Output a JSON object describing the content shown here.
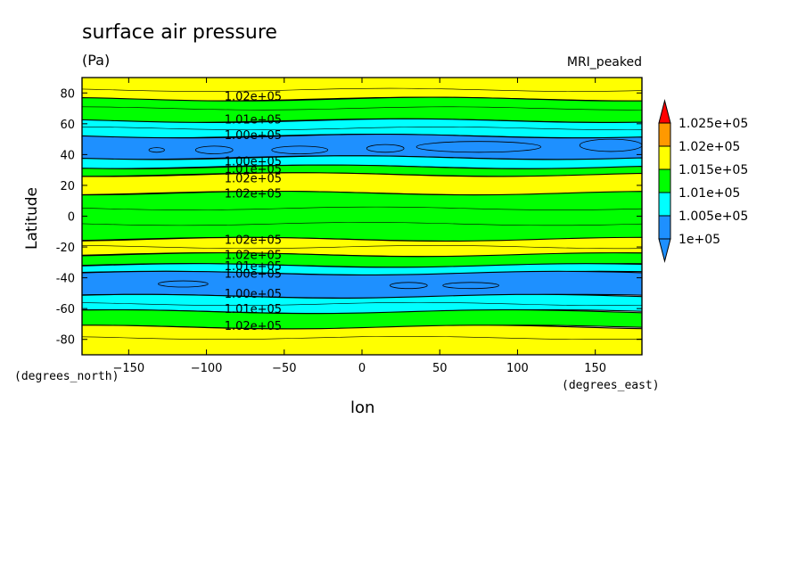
{
  "title": "surface air pressure",
  "units": "(Pa)",
  "model": "MRI_peaked",
  "ylabel": "Latitude",
  "ylabel_units": "(degrees_north)",
  "xlabel": "lon",
  "xlabel_units": "(degrees_east)",
  "colors": {
    "blue": "#1e90ff",
    "cyan": "#00ffff",
    "green": "#00ff00",
    "yellow": "#ffff00",
    "orange": "#ff9900",
    "red": "#ff0000"
  },
  "chart_data": {
    "type": "heatmap",
    "title": "surface air pressure",
    "xlabel": "lon",
    "ylabel": "Latitude",
    "xlim": [
      -180,
      180
    ],
    "ylim": [
      -90,
      90
    ],
    "xticks": [
      -150,
      -100,
      -50,
      0,
      50,
      100,
      150
    ],
    "yticks": [
      80,
      60,
      40,
      20,
      0,
      -20,
      -40,
      -60,
      -80
    ],
    "colorbar": {
      "levels": [
        "1.025e+05",
        "1.02e+05",
        "1.015e+05",
        "1.01e+05",
        "1.005e+05",
        "1e+05"
      ],
      "colors": [
        "#ff9900",
        "#ffff00",
        "#00ff00",
        "#00ffff",
        "#1e90ff"
      ],
      "over_color": "#ff0000",
      "under_color": "#1e90ff"
    },
    "bands": [
      {
        "lat_from": 90,
        "lat_to": 76,
        "level": "1.015e+05 to 1.02e+05",
        "color": "#ffff00"
      },
      {
        "lat_from": 76,
        "lat_to": 62,
        "level": "1.01e+05 to 1.015e+05",
        "color": "#00ff00"
      },
      {
        "lat_from": 62,
        "lat_to": 52,
        "level": "1.005e+05 to 1.01e+05",
        "color": "#00ffff"
      },
      {
        "lat_from": 52,
        "lat_to": 38,
        "level": "1e+05 to 1.005e+05",
        "color": "#1e90ff"
      },
      {
        "lat_from": 38,
        "lat_to": 32,
        "level": "1.005e+05 to 1.01e+05",
        "color": "#00ffff"
      },
      {
        "lat_from": 32,
        "lat_to": 27,
        "level": "1.01e+05 to 1.015e+05",
        "color": "#00ff00"
      },
      {
        "lat_from": 27,
        "lat_to": 15,
        "level": "1.015e+05 to 1.02e+05",
        "color": "#ffff00"
      },
      {
        "lat_from": 15,
        "lat_to": -15,
        "level": "1.01e+05 to 1.015e+05",
        "color": "#00ff00"
      },
      {
        "lat_from": -15,
        "lat_to": -25,
        "level": "1.015e+05 to 1.02e+05",
        "color": "#ffff00"
      },
      {
        "lat_from": -25,
        "lat_to": -32,
        "level": "1.01e+05 to 1.015e+05",
        "color": "#00ff00"
      },
      {
        "lat_from": -32,
        "lat_to": -37,
        "level": "1.005e+05 to 1.01e+05",
        "color": "#00ffff"
      },
      {
        "lat_from": -37,
        "lat_to": -52,
        "level": "1e+05 to 1.005e+05",
        "color": "#1e90ff"
      },
      {
        "lat_from": -52,
        "lat_to": -62,
        "level": "1.005e+05 to 1.01e+05",
        "color": "#00ffff"
      },
      {
        "lat_from": -62,
        "lat_to": -72,
        "level": "1.01e+05 to 1.015e+05",
        "color": "#00ff00"
      },
      {
        "lat_from": -72,
        "lat_to": -90,
        "level": "1.015e+05 to 1.02e+05",
        "color": "#ffff00"
      }
    ],
    "contour_labels": [
      {
        "text": "1.02e+05",
        "lon": -70,
        "lat": 78
      },
      {
        "text": "1.01e+05",
        "lon": -70,
        "lat": 63
      },
      {
        "text": "1.00e+05",
        "lon": -70,
        "lat": 53
      },
      {
        "text": "1.00e+05",
        "lon": -70,
        "lat": 36
      },
      {
        "text": "1.01e+05",
        "lon": -70,
        "lat": 31
      },
      {
        "text": "1.02e+05",
        "lon": -70,
        "lat": 25
      },
      {
        "text": "1.02e+05",
        "lon": -70,
        "lat": 15
      },
      {
        "text": "1.02e+05",
        "lon": -70,
        "lat": -15
      },
      {
        "text": "1.02e+05",
        "lon": -70,
        "lat": -25
      },
      {
        "text": "1.01e+05",
        "lon": -70,
        "lat": -32
      },
      {
        "text": "1.00e+05",
        "lon": -70,
        "lat": -37
      },
      {
        "text": "1.00e+05",
        "lon": -70,
        "lat": -50
      },
      {
        "text": "1.01e+05",
        "lon": -70,
        "lat": -60
      },
      {
        "text": "1.02e+05",
        "lon": -70,
        "lat": -71
      }
    ],
    "closed_contours": [
      {
        "lon": -132,
        "lat": 43,
        "rx": 5,
        "ry": 1.5
      },
      {
        "lon": -95,
        "lat": 43,
        "rx": 12,
        "ry": 2.5
      },
      {
        "lon": -40,
        "lat": 43,
        "rx": 18,
        "ry": 2.5
      },
      {
        "lon": 15,
        "lat": 44,
        "rx": 12,
        "ry": 2.5
      },
      {
        "lon": 75,
        "lat": 45,
        "rx": 40,
        "ry": 3.5
      },
      {
        "lon": 160,
        "lat": 46,
        "rx": 20,
        "ry": 4
      },
      {
        "lon": -115,
        "lat": -44,
        "rx": 16,
        "ry": 2
      },
      {
        "lon": 30,
        "lat": -45,
        "rx": 12,
        "ry": 2
      },
      {
        "lon": 70,
        "lat": -45,
        "rx": 18,
        "ry": 2
      }
    ]
  }
}
